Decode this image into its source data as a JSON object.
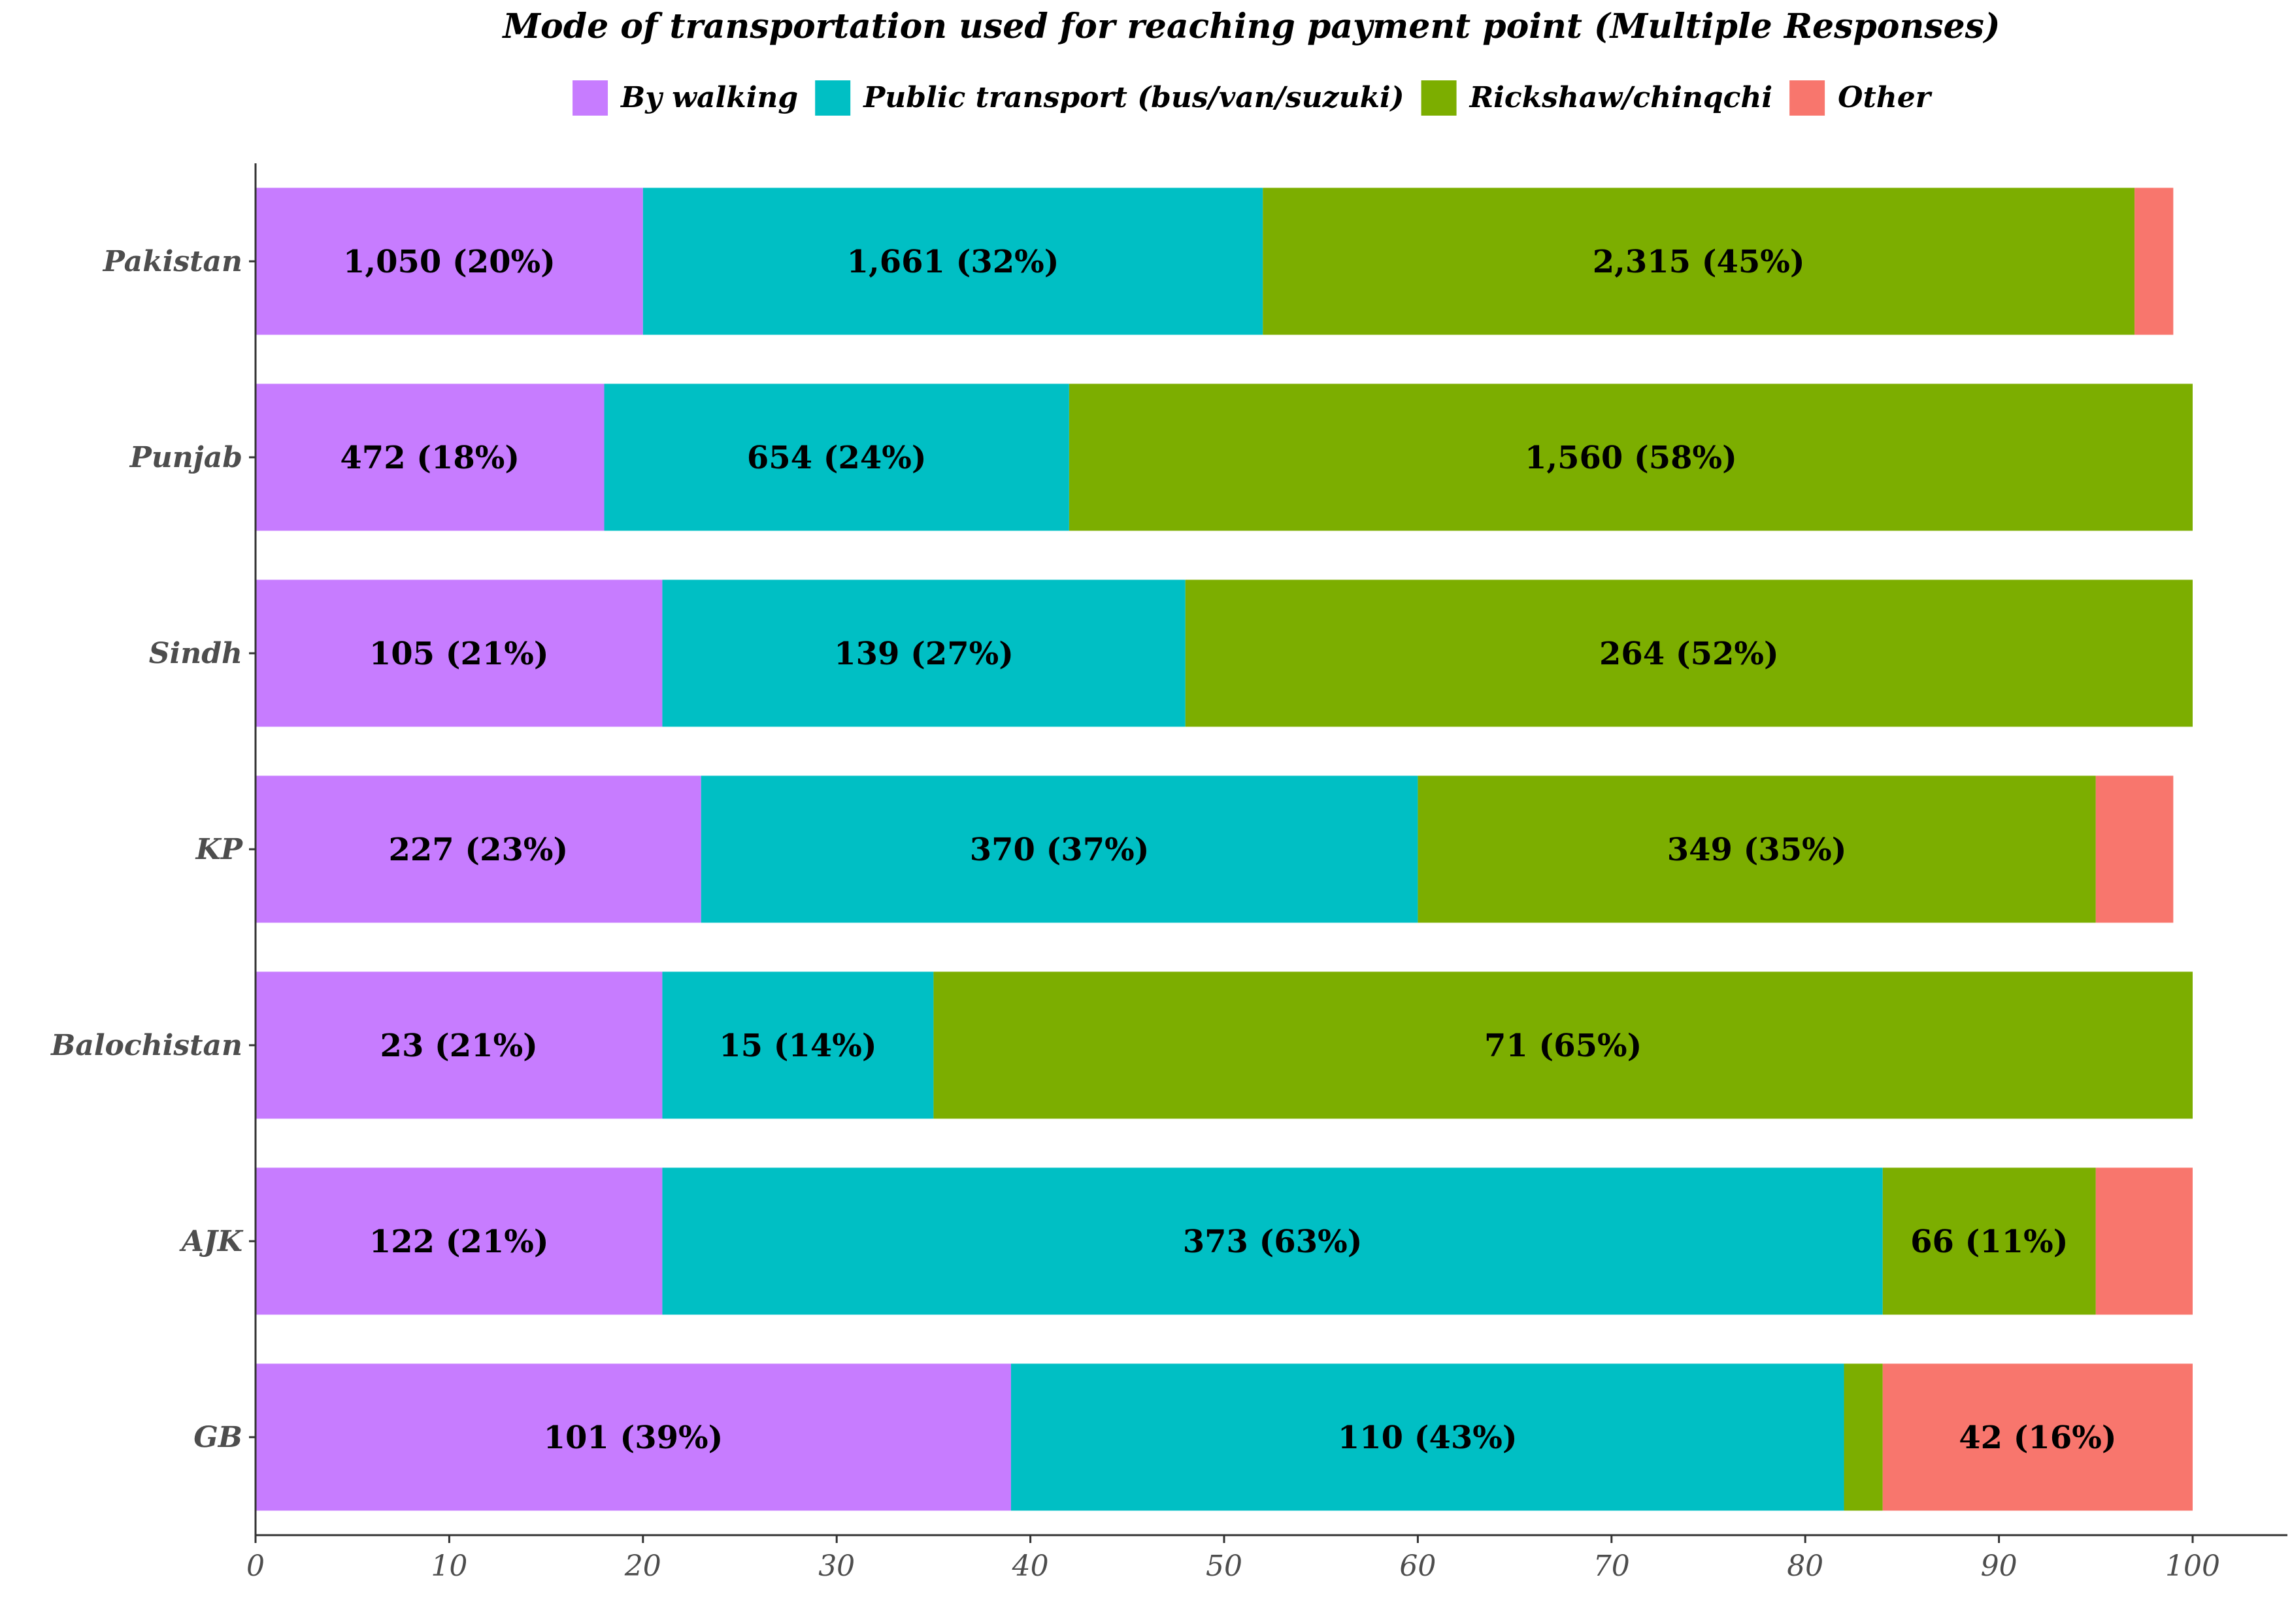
{
  "chart_data": {
    "type": "bar",
    "orientation": "horizontal",
    "stacked": true,
    "title": "Mode of transportation used for reaching payment point (Multiple Responses)",
    "categories": [
      "Pakistan",
      "Punjab",
      "Sindh",
      "KP",
      "Balochistan",
      "AJK",
      "GB"
    ],
    "xlim": [
      0,
      100
    ],
    "x_ticks": [
      0,
      10,
      20,
      30,
      40,
      50,
      60,
      70,
      80,
      90,
      100
    ],
    "legend_position": "top",
    "grid": false,
    "series": [
      {
        "name": "By walking",
        "color": "#C77CFF",
        "values": [
          20,
          18,
          21,
          23,
          21,
          21,
          39
        ],
        "labels": [
          "1,050 (20%)",
          "472 (18%)",
          "105 (21%)",
          "227 (23%)",
          "23 (21%)",
          "122 (21%)",
          "101 (39%)"
        ]
      },
      {
        "name": "Public transport (bus/van/suzuki)",
        "color": "#00BFC4",
        "values": [
          32,
          24,
          27,
          37,
          14,
          63,
          43
        ],
        "labels": [
          "1,661 (32%)",
          "654 (24%)",
          "139 (27%)",
          "370 (37%)",
          "15 (14%)",
          "373 (63%)",
          "110 (43%)"
        ]
      },
      {
        "name": "Rickshaw/chinqchi",
        "color": "#7CAE00",
        "values": [
          45,
          58,
          52,
          35,
          65,
          11,
          2
        ],
        "labels": [
          "2,315 (45%)",
          "1,560 (58%)",
          "264 (52%)",
          "349 (35%)",
          "71 (65%)",
          "66 (11%)",
          ""
        ]
      },
      {
        "name": "Other",
        "color": "#F8766D",
        "values": [
          2,
          0,
          0,
          4,
          0,
          5,
          16
        ],
        "labels": [
          "",
          "",
          "",
          "",
          "",
          "",
          "42 (16%)"
        ]
      }
    ]
  }
}
